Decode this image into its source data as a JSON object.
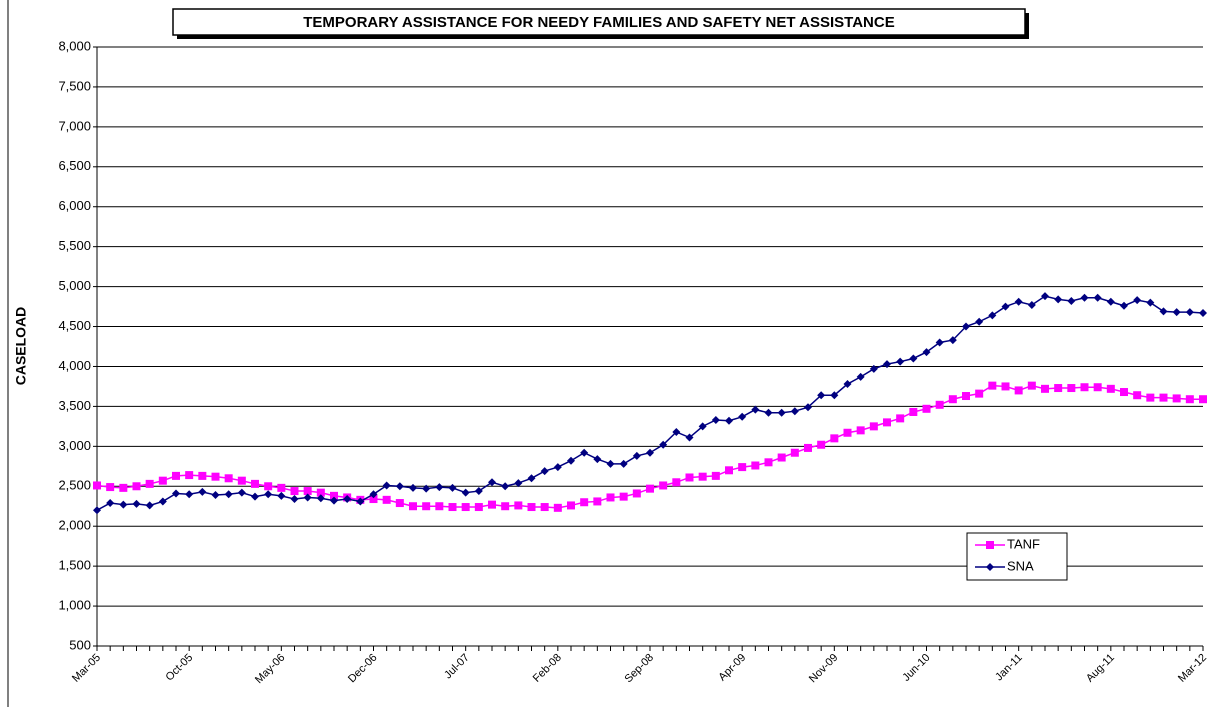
{
  "chart_data": {
    "type": "line",
    "title": "TEMPORARY ASSISTANCE FOR NEEDY FAMILIES AND SAFETY NET ASSISTANCE",
    "y_label": "CASELOAD",
    "categories": [
      "Mar-05",
      null,
      null,
      null,
      null,
      null,
      null,
      "Oct-05",
      null,
      null,
      null,
      null,
      null,
      null,
      "May-06",
      null,
      null,
      null,
      null,
      null,
      null,
      "Dec-06",
      null,
      null,
      null,
      null,
      null,
      null,
      "Jul-07",
      null,
      null,
      null,
      null,
      null,
      null,
      "Feb-08",
      null,
      null,
      null,
      null,
      null,
      null,
      "Sep-08",
      null,
      null,
      null,
      null,
      null,
      null,
      "Apr-09",
      null,
      null,
      null,
      null,
      null,
      null,
      "Nov-09",
      null,
      null,
      null,
      null,
      null,
      null,
      "Jun-10",
      null,
      null,
      null,
      null,
      null,
      null,
      "Jan-11",
      null,
      null,
      null,
      null,
      null,
      null,
      "Aug-11",
      null,
      null,
      null,
      null,
      null,
      null,
      "Mar-12"
    ],
    "series": [
      {
        "name": "TANF",
        "color": "#ff00ff",
        "marker": "square",
        "values": [
          2510,
          2490,
          2480,
          2500,
          2530,
          2570,
          2630,
          2640,
          2630,
          2620,
          2600,
          2570,
          2530,
          2500,
          2480,
          2440,
          2440,
          2420,
          2380,
          2360,
          2330,
          2340,
          2330,
          2290,
          2250,
          2250,
          2250,
          2240,
          2240,
          2240,
          2270,
          2250,
          2260,
          2240,
          2240,
          2230,
          2260,
          2300,
          2310,
          2360,
          2370,
          2410,
          2470,
          2510,
          2550,
          2610,
          2620,
          2630,
          2700,
          2740,
          2760,
          2800,
          2860,
          2920,
          2980,
          3020,
          3100,
          3170,
          3200,
          3250,
          3300,
          3350,
          3430,
          3470,
          3520,
          3590,
          3630,
          3660,
          3760,
          3750,
          3700,
          3760,
          3720,
          3730,
          3730,
          3740,
          3740,
          3720,
          3680,
          3640,
          3610,
          3610,
          3600,
          3590,
          3590
        ]
      },
      {
        "name": "SNA",
        "color": "#000080",
        "marker": "diamond",
        "values": [
          2200,
          2290,
          2270,
          2280,
          2260,
          2310,
          2410,
          2400,
          2430,
          2390,
          2400,
          2420,
          2370,
          2400,
          2380,
          2340,
          2360,
          2350,
          2320,
          2340,
          2310,
          2400,
          2510,
          2500,
          2480,
          2470,
          2490,
          2480,
          2420,
          2440,
          2550,
          2500,
          2540,
          2600,
          2690,
          2740,
          2820,
          2920,
          2840,
          2780,
          2780,
          2880,
          2920,
          3020,
          3180,
          3110,
          3250,
          3330,
          3320,
          3370,
          3460,
          3420,
          3420,
          3440,
          3490,
          3640,
          3640,
          3780,
          3870,
          3970,
          4030,
          4060,
          4100,
          4180,
          4300,
          4330,
          4500,
          4560,
          4640,
          4750,
          4810,
          4770,
          4880,
          4840,
          4820,
          4860,
          4860,
          4810,
          4760,
          4830,
          4800,
          4690,
          4680,
          4680,
          4670
        ]
      }
    ],
    "ylim": [
      500,
      8000
    ],
    "yticks": [
      500,
      {
        "value": 1000,
        "label": "1,000"
      },
      {
        "value": 1500,
        "label": "1,500"
      },
      {
        "value": 2000,
        "label": "2,000"
      },
      {
        "value": 2500,
        "label": "2,500"
      },
      {
        "value": 3000,
        "label": "3,000"
      },
      {
        "value": 3500,
        "label": "3,500"
      },
      {
        "value": 4000,
        "label": "4,000"
      },
      {
        "value": 4500,
        "label": "4,500"
      },
      {
        "value": 5000,
        "label": "5,000"
      },
      {
        "value": 5500,
        "label": "5,500"
      },
      {
        "value": 6000,
        "label": "6,000"
      },
      {
        "value": 6500,
        "label": "6,500"
      },
      {
        "value": 7000,
        "label": "7,000"
      },
      {
        "value": 7500,
        "label": "7,500"
      },
      {
        "value": 8000,
        "label": "8,000"
      }
    ],
    "grid": true,
    "legend": "lower right"
  }
}
